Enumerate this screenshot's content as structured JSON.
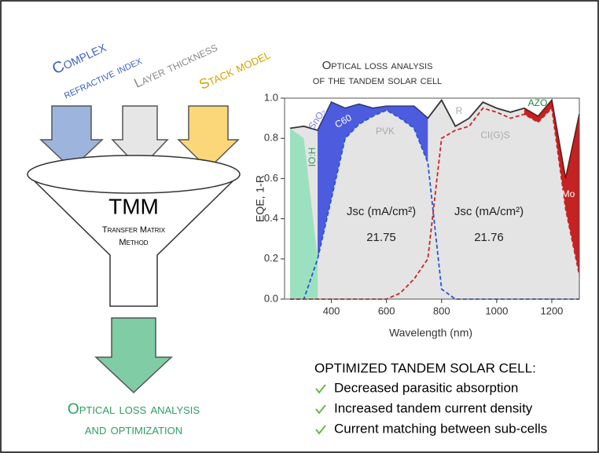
{
  "inputs": [
    "Complex",
    "refractive index",
    "Layer thickness",
    "Stack model"
  ],
  "funnel": {
    "title": "TMM",
    "subtitle_lines": [
      "Transfer Matrix",
      "Method"
    ]
  },
  "output": [
    "Optical loss analysis",
    "and optimization"
  ],
  "chart_data": {
    "type": "area",
    "title_lines": [
      "Optical loss analysis",
      "of the tandem solar cell"
    ],
    "x_label": "Wavelength (nm)",
    "y_label": "EQE, 1-R",
    "xlim": [
      230,
      1300
    ],
    "ylim": [
      0,
      1
    ],
    "xticks": [
      400,
      600,
      800,
      1000,
      1200
    ],
    "yticks": [
      {
        "value": 0,
        "label": "0.0"
      },
      0.2,
      0.4,
      0.6,
      0.8,
      {
        "value": 1,
        "label": "1.0"
      }
    ],
    "x": [
      250,
      300,
      350,
      400,
      450,
      500,
      550,
      600,
      650,
      700,
      750,
      800,
      850,
      900,
      950,
      1000,
      1050,
      1100,
      1150,
      1200,
      1250,
      1300
    ],
    "series": [
      {
        "style": "filled-line",
        "color": "#333333",
        "fill": "#e4e4e4",
        "values": [
          0.85,
          0.86,
          0.84,
          0.98,
          0.95,
          0.97,
          0.95,
          0.96,
          0.96,
          0.96,
          0.9,
          0.99,
          0.86,
          0.9,
          0.98,
          0.95,
          0.93,
          0.95,
          0.91,
          0.99,
          0.6,
          0.92
        ]
      },
      {
        "style": "band",
        "color": "#8fe0b8",
        "values": [
          0.85,
          0.8,
          0.2,
          null,
          null,
          null,
          null,
          null,
          null,
          null,
          null,
          null,
          null,
          null,
          null,
          null,
          null,
          null,
          null,
          null,
          null,
          null
        ],
        "lower": [
          0,
          0,
          0,
          null,
          null,
          null,
          null,
          null,
          null,
          null,
          null,
          null,
          null,
          null,
          null,
          null,
          null,
          null,
          null,
          null,
          null,
          null
        ]
      },
      {
        "style": "band",
        "color": "#3344dd",
        "values": [
          null,
          null,
          0.84,
          0.98,
          0.95,
          0.97,
          0.95,
          0.96,
          0.96,
          0.96,
          0.9,
          null,
          null,
          null,
          null,
          null,
          null,
          null,
          null,
          null,
          null,
          null
        ],
        "lower": [
          null,
          null,
          0.2,
          0.5,
          0.8,
          0.87,
          0.91,
          0.94,
          0.9,
          0.85,
          0.68,
          null,
          null,
          null,
          null,
          null,
          null,
          null,
          null,
          null,
          null,
          null
        ]
      },
      {
        "style": "band",
        "color": "#c00000",
        "values": [
          null,
          null,
          null,
          null,
          null,
          null,
          null,
          null,
          null,
          null,
          null,
          null,
          null,
          null,
          null,
          null,
          null,
          0.95,
          0.91,
          0.99,
          0.6,
          0.92
        ],
        "lower": [
          null,
          null,
          null,
          null,
          null,
          null,
          null,
          null,
          null,
          null,
          null,
          null,
          null,
          null,
          null,
          null,
          null,
          0.92,
          0.88,
          0.95,
          0.45,
          0.12
        ]
      },
      {
        "style": "dashed",
        "color": "#2255dd",
        "values": [
          0,
          0,
          0.2,
          0.5,
          0.8,
          0.87,
          0.91,
          0.94,
          0.9,
          0.85,
          0.68,
          0.05,
          0,
          0,
          0,
          0,
          0,
          0,
          0,
          0,
          0,
          0
        ]
      },
      {
        "style": "dashed",
        "color": "#cc2222",
        "values": [
          0,
          0,
          0,
          0,
          0,
          0,
          0,
          0,
          0.03,
          0.1,
          0.2,
          0.8,
          0.84,
          0.86,
          0.95,
          0.93,
          0.9,
          0.92,
          0.88,
          0.95,
          0.45,
          0.12
        ]
      }
    ],
    "annotations": [
      "IO:H",
      "SnO₂",
      "C60",
      "PVK",
      "R",
      "CI(G)S",
      "AZO",
      "Mo"
    ],
    "currents": [
      {
        "label": "Jsc (mA/cm²)",
        "value": 21.75
      },
      {
        "label": "Jsc (mA/cm²)",
        "value": 21.76
      }
    ]
  },
  "conclusions": {
    "heading": "OPTIMIZED TANDEM SOLAR CELL:",
    "items": [
      "Decreased parasitic absorption",
      "Increased tandem current density",
      "Current matching between sub-cells"
    ]
  }
}
